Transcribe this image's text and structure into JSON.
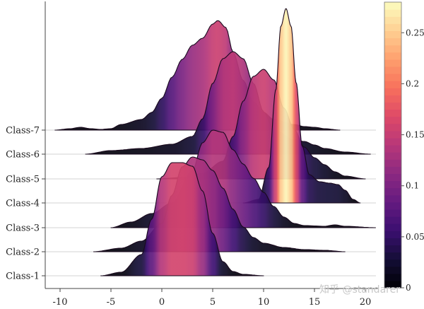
{
  "chart_data": {
    "type": "ridgeline",
    "title": "",
    "xlabel": "",
    "ylabel": "",
    "xlim": [
      -11.5,
      21
    ],
    "x_ticks": [
      -10,
      -5,
      0,
      5,
      10,
      15,
      20
    ],
    "x_tick_labels": [
      "-10",
      "-5",
      "0",
      "5",
      "10",
      "15",
      "20"
    ],
    "categories": [
      "Class-1",
      "Class-2",
      "Class-3",
      "Class-4",
      "Class-5",
      "Class-6",
      "Class-7"
    ],
    "grid": "horizontal baselines (light gray)",
    "fill": "gradient by density (magma colormap)",
    "series": [
      {
        "name": "Class-1",
        "peak_x": 2.0,
        "peak_density": 0.16,
        "range": [
          -6,
          10
        ],
        "points": [
          [
            -6,
            0
          ],
          [
            -4,
            0.005
          ],
          [
            -2,
            0.03
          ],
          [
            -1,
            0.08
          ],
          [
            0,
            0.14
          ],
          [
            1,
            0.16
          ],
          [
            2,
            0.16
          ],
          [
            3,
            0.155
          ],
          [
            4,
            0.12
          ],
          [
            5,
            0.06
          ],
          [
            6,
            0.02
          ],
          [
            7,
            0.006
          ],
          [
            8,
            0.002
          ],
          [
            10,
            0
          ]
        ]
      },
      {
        "name": "Class-2",
        "peak_x": 3.5,
        "peak_density": 0.135,
        "range": [
          -6.7,
          18
        ],
        "points": [
          [
            -6.7,
            0
          ],
          [
            -4,
            0.005
          ],
          [
            -2,
            0.015
          ],
          [
            0,
            0.04
          ],
          [
            1,
            0.08
          ],
          [
            2,
            0.12
          ],
          [
            3,
            0.134
          ],
          [
            4,
            0.13
          ],
          [
            5,
            0.115
          ],
          [
            6,
            0.09
          ],
          [
            7,
            0.06
          ],
          [
            8,
            0.035
          ],
          [
            9,
            0.02
          ],
          [
            10,
            0.012
          ],
          [
            12,
            0.006
          ],
          [
            14,
            0.003
          ],
          [
            16,
            0.002
          ],
          [
            18,
            0
          ]
        ]
      },
      {
        "name": "Class-3",
        "peak_x": 5.6,
        "peak_density": 0.14,
        "range": [
          -5,
          21
        ],
        "points": [
          [
            -5,
            0
          ],
          [
            -3,
            0.008
          ],
          [
            -1,
            0.02
          ],
          [
            1,
            0.035
          ],
          [
            3,
            0.08
          ],
          [
            4,
            0.12
          ],
          [
            5,
            0.138
          ],
          [
            6,
            0.135
          ],
          [
            7,
            0.11
          ],
          [
            8,
            0.09
          ],
          [
            9,
            0.07
          ],
          [
            10,
            0.05
          ],
          [
            11,
            0.03
          ],
          [
            12,
            0.015
          ],
          [
            13,
            0.006
          ],
          [
            14,
            0.003
          ],
          [
            16,
            0.002
          ],
          [
            17,
            0.004
          ],
          [
            18,
            0.002
          ],
          [
            21,
            0
          ]
        ]
      },
      {
        "name": "Class-4",
        "peak_x": 12.2,
        "peak_density": 0.275,
        "range": [
          8,
          20
        ],
        "points": [
          [
            8,
            0
          ],
          [
            9.5,
            0.005
          ],
          [
            10.5,
            0.05
          ],
          [
            11.2,
            0.16
          ],
          [
            11.7,
            0.25
          ],
          [
            12.2,
            0.275
          ],
          [
            12.7,
            0.25
          ],
          [
            13.2,
            0.17
          ],
          [
            13.8,
            0.08
          ],
          [
            14.5,
            0.04
          ],
          [
            15.5,
            0.03
          ],
          [
            16.5,
            0.028
          ],
          [
            17.3,
            0.026
          ],
          [
            18,
            0.018
          ],
          [
            18.8,
            0.005
          ],
          [
            19.5,
            0
          ]
        ]
      },
      {
        "name": "Class-5",
        "peak_x": 10.0,
        "peak_density": 0.155,
        "range": [
          -0.5,
          20
        ],
        "points": [
          [
            -0.5,
            0
          ],
          [
            2,
            0.002
          ],
          [
            4,
            0.008
          ],
          [
            6,
            0.025
          ],
          [
            7,
            0.06
          ],
          [
            8,
            0.11
          ],
          [
            9,
            0.145
          ],
          [
            10,
            0.155
          ],
          [
            11,
            0.14
          ],
          [
            12,
            0.1
          ],
          [
            13,
            0.07
          ],
          [
            14,
            0.045
          ],
          [
            15,
            0.03
          ],
          [
            16,
            0.02
          ],
          [
            17,
            0.01
          ],
          [
            18,
            0.004
          ],
          [
            20,
            0
          ]
        ]
      },
      {
        "name": "Class-6",
        "peak_x": 7.2,
        "peak_density": 0.145,
        "range": [
          -7.5,
          20.5
        ],
        "points": [
          [
            -7.5,
            0
          ],
          [
            -5,
            0.005
          ],
          [
            -2,
            0.008
          ],
          [
            1,
            0.014
          ],
          [
            3,
            0.025
          ],
          [
            4,
            0.05
          ],
          [
            5,
            0.1
          ],
          [
            6,
            0.135
          ],
          [
            7,
            0.145
          ],
          [
            8,
            0.135
          ],
          [
            9,
            0.1
          ],
          [
            10,
            0.06
          ],
          [
            11,
            0.035
          ],
          [
            13,
            0.02
          ],
          [
            14,
            0.018
          ],
          [
            15,
            0.013
          ],
          [
            16,
            0.008
          ],
          [
            18,
            0.003
          ],
          [
            20.5,
            0
          ]
        ]
      },
      {
        "name": "Class-7",
        "peak_x": 5.5,
        "peak_density": 0.155,
        "range": [
          -10.5,
          17.5
        ],
        "points": [
          [
            -10.5,
            0
          ],
          [
            -9,
            0.002
          ],
          [
            -8,
            0.004
          ],
          [
            -7,
            0.002
          ],
          [
            -6,
            0.001
          ],
          [
            -5,
            0.002
          ],
          [
            -4,
            0.008
          ],
          [
            -2,
            0.015
          ],
          [
            -1,
            0.025
          ],
          [
            0,
            0.045
          ],
          [
            1,
            0.075
          ],
          [
            2,
            0.1
          ],
          [
            3,
            0.12
          ],
          [
            4,
            0.13
          ],
          [
            5,
            0.15
          ],
          [
            5.5,
            0.155
          ],
          [
            6.3,
            0.145
          ],
          [
            7,
            0.11
          ],
          [
            8,
            0.07
          ],
          [
            9,
            0.04
          ],
          [
            10,
            0.025
          ],
          [
            11,
            0.015
          ],
          [
            13,
            0.008
          ],
          [
            14,
            0.005
          ],
          [
            15,
            0.004
          ],
          [
            16,
            0.002
          ],
          [
            17.5,
            0
          ]
        ]
      }
    ],
    "colorbar": {
      "colormap": "magma",
      "range": [
        0,
        0.28
      ],
      "ticks": [
        0,
        0.05,
        0.1,
        0.15,
        0.2,
        0.25
      ],
      "tick_labels": [
        "0",
        "0.05",
        "0.1",
        "0.15",
        "0.2",
        "0.25"
      ]
    }
  },
  "watermark": "知乎 @standarer"
}
